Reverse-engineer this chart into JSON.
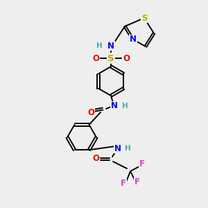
{
  "bg_color": "#eeeeee",
  "figsize": [
    3.0,
    3.0
  ],
  "dpi": 100,
  "lw": 1.4,
  "fs": 8.5,
  "colors": {
    "C": "#000000",
    "N": "#0000EE",
    "O": "#EE0000",
    "S_thz": "#BBAA00",
    "S_sul": "#BBAA00",
    "F": "#CC44CC",
    "H": "#4AAAAA"
  }
}
